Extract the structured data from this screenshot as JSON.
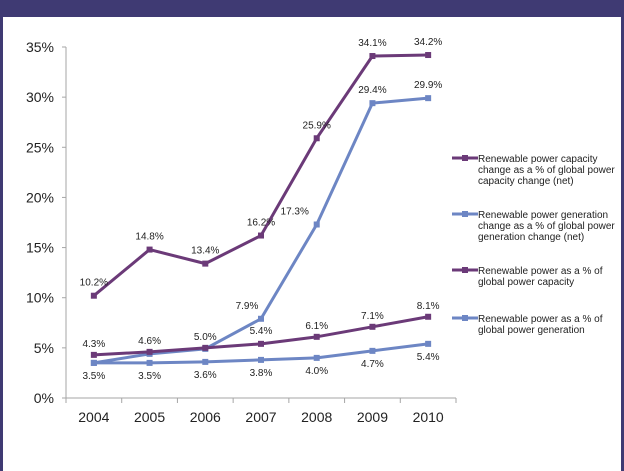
{
  "colors": {
    "frame": "#3f3a73",
    "capacity_change": "#6b3a78",
    "generation_change": "#6d86c4",
    "capacity_share": "#6b3a78",
    "generation_share": "#6d86c4",
    "axis": "#a6a6a6"
  },
  "chart_data": {
    "type": "line",
    "title": "",
    "xlabel": "",
    "ylabel": "",
    "categories": [
      "2004",
      "2005",
      "2006",
      "2007",
      "2008",
      "2009",
      "2010"
    ],
    "ylim": [
      0,
      35
    ],
    "yticks": [
      "0%",
      "5%",
      "10%",
      "15%",
      "20%",
      "25%",
      "30%",
      "35%"
    ],
    "grid": false,
    "legend_position": "right",
    "series": [
      {
        "name": "Renewable power capacity change as a % of global power capacity change (net)",
        "values": [
          10.2,
          14.8,
          13.4,
          16.2,
          25.9,
          34.1,
          34.2
        ],
        "labels": [
          "10.2%",
          "14.8%",
          "13.4%",
          "16.2%",
          "25.9%",
          "34.1%",
          "34.2%"
        ]
      },
      {
        "name": "Renewable power generation change as a % of global power generation change (net)",
        "values": [
          3.5,
          4.4,
          4.9,
          7.9,
          17.3,
          29.4,
          29.9
        ],
        "labels": [
          "",
          "",
          "",
          "7.9%",
          "17.3%",
          "29.4%",
          "29.9%"
        ]
      },
      {
        "name": "Renewable power as a % of global power capacity",
        "values": [
          4.3,
          4.6,
          5.0,
          5.4,
          6.1,
          7.1,
          8.1
        ],
        "labels": [
          "4.3%",
          "4.6%",
          "5.0%",
          "5.4%",
          "6.1%",
          "7.1%",
          "8.1%"
        ]
      },
      {
        "name": "Renewable power as a % of global power generation",
        "values": [
          3.5,
          3.5,
          3.6,
          3.8,
          4.0,
          4.7,
          5.4
        ],
        "labels": [
          "3.5%",
          "3.5%",
          "3.6%",
          "3.8%",
          "4.0%",
          "4.7%",
          "5.4%"
        ]
      }
    ],
    "legend_lines": [
      [
        "Renewable power capacity",
        "change as a % of global power",
        "capacity change (net)"
      ],
      [
        "Renewable power generation",
        "change as a % of global power",
        "generation change (net)"
      ],
      [
        "Renewable power as a % of",
        "global power capacity"
      ],
      [
        "Renewable power as a % of",
        "global power generation"
      ]
    ]
  }
}
